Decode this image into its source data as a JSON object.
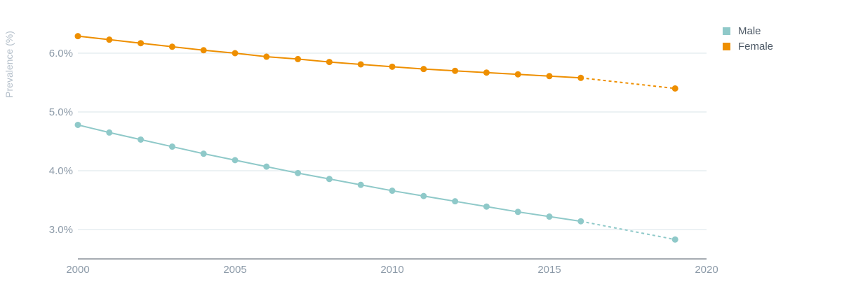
{
  "chart_data": {
    "type": "line",
    "title": "",
    "xlabel": "",
    "ylabel": "Prevalence (%)",
    "xlim": [
      2000,
      2020
    ],
    "ylim": [
      2.5,
      6.7
    ],
    "x_ticks": [
      2000,
      2005,
      2010,
      2015,
      2020
    ],
    "x_tick_labels": [
      "2000",
      "2005",
      "2010",
      "2015",
      "2020"
    ],
    "y_ticks": [
      3.0,
      4.0,
      5.0,
      6.0
    ],
    "y_tick_labels": [
      "3.0%",
      "4.0%",
      "5.0%",
      "6.0%"
    ],
    "grid": true,
    "legend_position": "top-right",
    "x": [
      2000,
      2001,
      2002,
      2003,
      2004,
      2005,
      2006,
      2007,
      2008,
      2009,
      2010,
      2011,
      2012,
      2013,
      2014,
      2015,
      2016,
      2019
    ],
    "series": [
      {
        "name": "Male",
        "color": "#8fc9c9",
        "values": [
          4.78,
          4.65,
          4.53,
          4.41,
          4.29,
          4.18,
          4.07,
          3.96,
          3.86,
          3.76,
          3.66,
          3.57,
          3.48,
          3.39,
          3.3,
          3.22,
          3.14,
          2.83
        ],
        "dashed_from_x": 2016
      },
      {
        "name": "Female",
        "color": "#ee8f00",
        "values": [
          6.29,
          6.23,
          6.17,
          6.11,
          6.05,
          6.0,
          5.94,
          5.9,
          5.85,
          5.81,
          5.77,
          5.73,
          5.7,
          5.67,
          5.64,
          5.61,
          5.58,
          5.4
        ],
        "dashed_from_x": 2016
      }
    ]
  }
}
